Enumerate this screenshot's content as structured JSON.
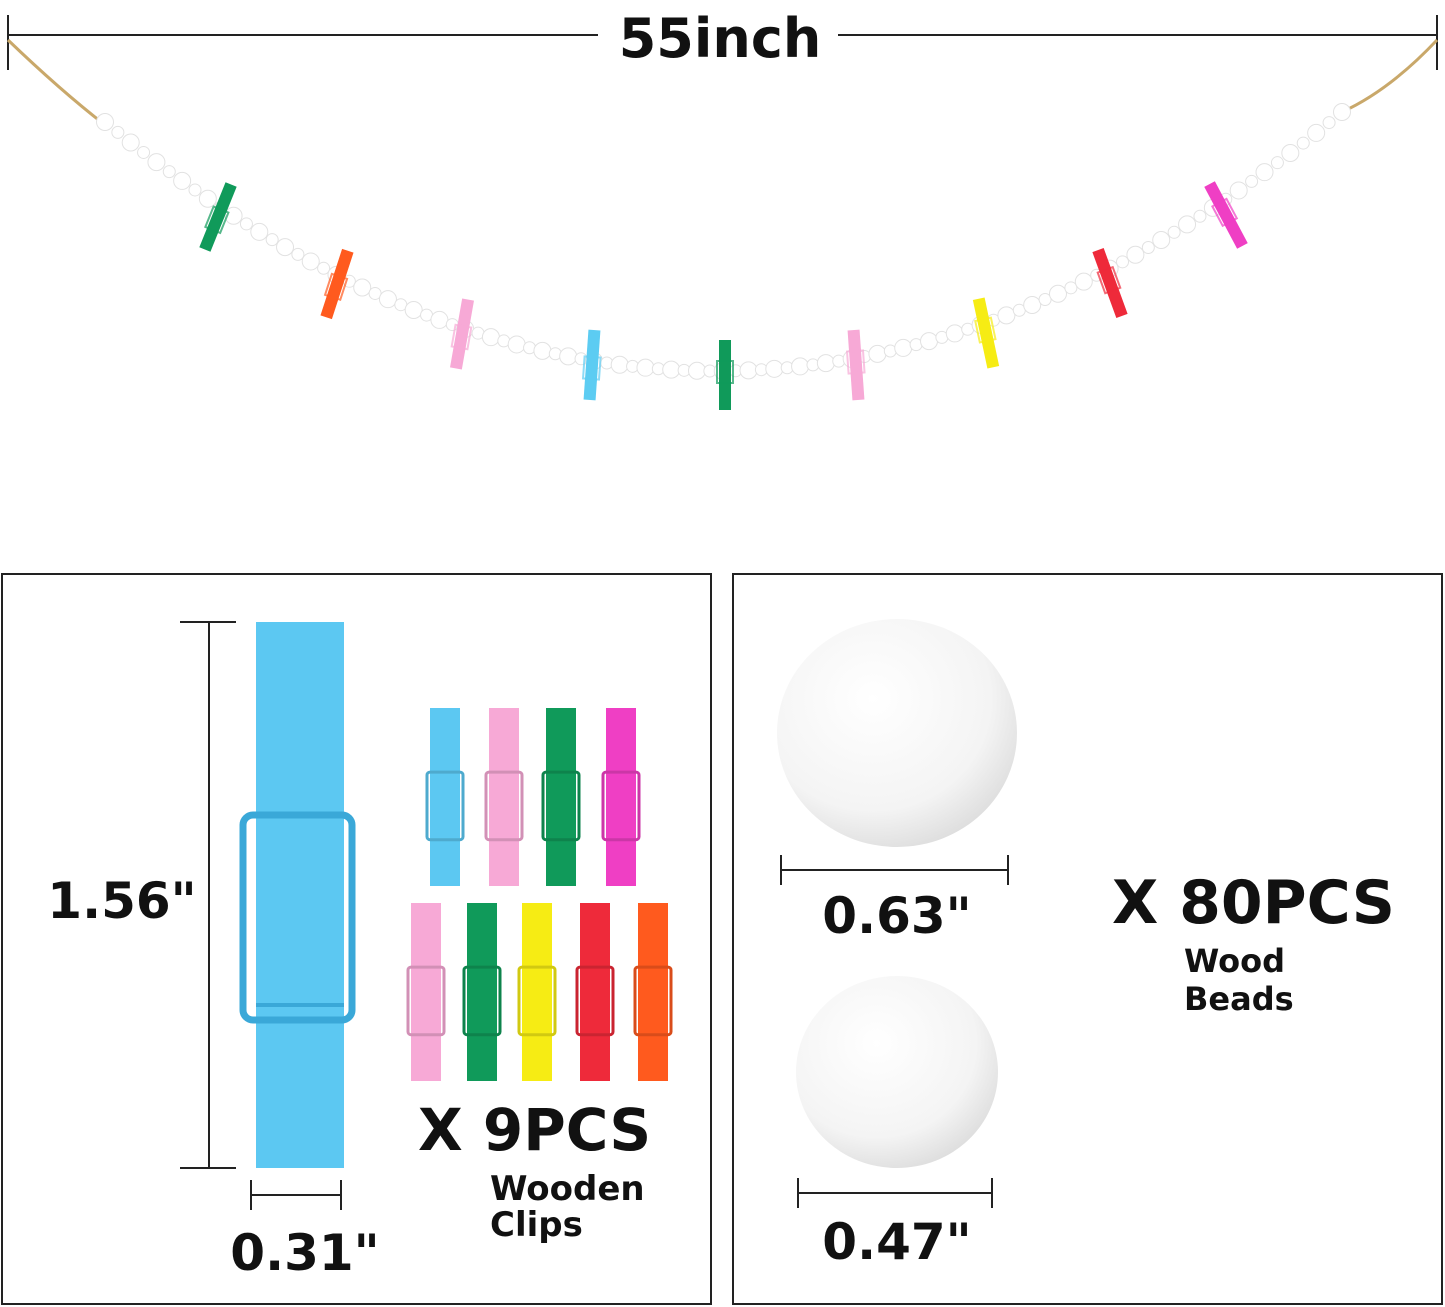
{
  "garland": {
    "length_label": "55inch",
    "clip_colors": [
      "#109a5a",
      "#ff5a1e",
      "#f7a9d6",
      "#5cccf2",
      "#109a5a",
      "#f7a9d6",
      "#f6ec14",
      "#ee2a3a",
      "#ef3fc4"
    ],
    "bead_color": "#ffffff",
    "string_color": "#c9a86a"
  },
  "clips_panel": {
    "height_label": "1.56\"",
    "width_label": "0.31\"",
    "count_label": "X 9PCS",
    "name_line1": "Wooden",
    "name_line2": "Clips",
    "big_clip_color": "#5cc8f2",
    "row1_colors": [
      "#5cc8f2",
      "#f7a9d6",
      "#109a5a",
      "#ef3fc4"
    ],
    "row2_colors": [
      "#f7a9d6",
      "#109a5a",
      "#f6ec14",
      "#ee2a3a",
      "#ff5a1e"
    ]
  },
  "beads_panel": {
    "large_label": "0.63\"",
    "small_label": "0.47\"",
    "count_label": "X 80PCS",
    "name_line1": "Wood",
    "name_line2": "Beads"
  }
}
